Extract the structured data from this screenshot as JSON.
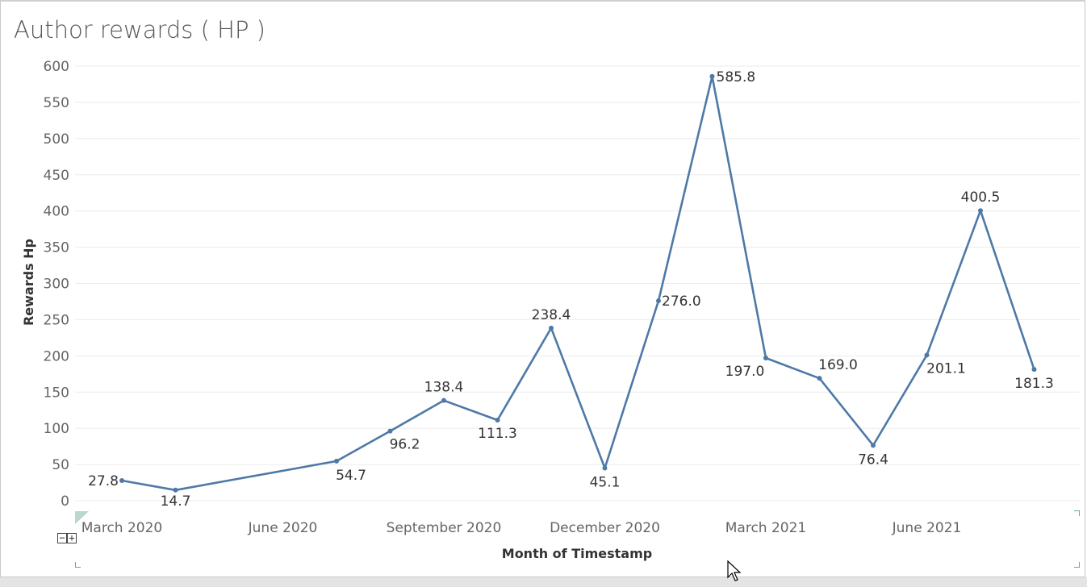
{
  "title": "Author rewards ( HP )",
  "chart_data": {
    "type": "line",
    "title": "Author rewards ( HP )",
    "xlabel": "Month of Timestamp",
    "ylabel": "Rewards Hp",
    "ylim": [
      0,
      600
    ],
    "yticks": [
      0,
      50,
      100,
      150,
      200,
      250,
      300,
      350,
      400,
      450,
      500,
      550,
      600
    ],
    "xticks": [
      {
        "date": "2020-03",
        "label": "March 2020"
      },
      {
        "date": "2020-06",
        "label": "June 2020"
      },
      {
        "date": "2020-09",
        "label": "September 2020"
      },
      {
        "date": "2020-12",
        "label": "December 2020"
      },
      {
        "date": "2021-03",
        "label": "March 2021"
      },
      {
        "date": "2021-06",
        "label": "June 2021"
      }
    ],
    "x": [
      "2020-03",
      "2020-04",
      "2020-07",
      "2020-08",
      "2020-09",
      "2020-10",
      "2020-11",
      "2020-12",
      "2021-01",
      "2021-02",
      "2021-03",
      "2021-04",
      "2021-05",
      "2021-06",
      "2021-07",
      "2021-08"
    ],
    "series": [
      {
        "values": [
          27.8,
          14.7,
          54.7,
          96.2,
          138.4,
          111.3,
          238.4,
          45.1,
          276.0,
          585.8,
          197.0,
          169.0,
          76.4,
          201.1,
          400.5,
          181.3
        ],
        "labels": [
          "27.8",
          "14.7",
          "54.7",
          "96.2",
          "138.4",
          "111.3",
          "238.4",
          "45.1",
          "276.0",
          "585.8",
          "197.0",
          "169.0",
          "76.4",
          "201.1",
          "400.5",
          "181.3"
        ],
        "color": "#4e79a7"
      }
    ],
    "grid": true,
    "legend": "none"
  },
  "controls": {
    "zoom_label": "−+"
  },
  "colors": {
    "line": "#4e79a7",
    "grid": "#ebebeb",
    "axis_text": "#666666",
    "label_text": "#333333",
    "title": "#555555"
  }
}
